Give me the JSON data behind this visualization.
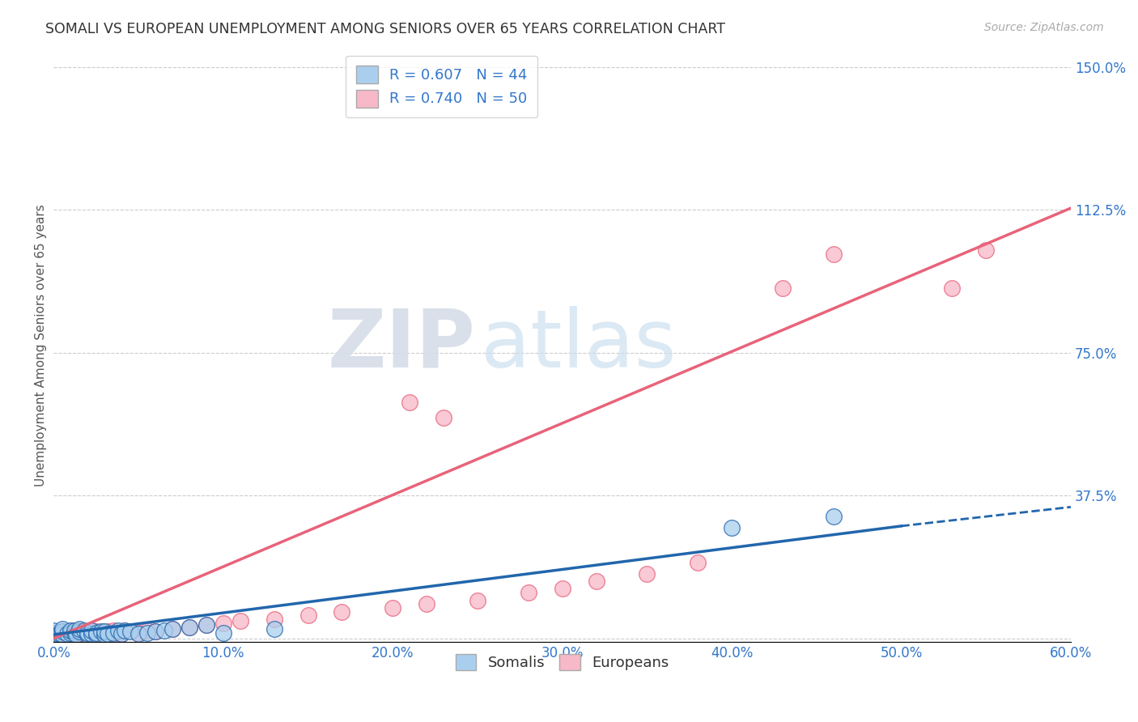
{
  "title": "SOMALI VS EUROPEAN UNEMPLOYMENT AMONG SENIORS OVER 65 YEARS CORRELATION CHART",
  "source": "Source: ZipAtlas.com",
  "xlabel_ticks": [
    "0.0%",
    "10.0%",
    "20.0%",
    "30.0%",
    "40.0%",
    "50.0%",
    "60.0%"
  ],
  "xlabel_vals": [
    0.0,
    0.1,
    0.2,
    0.3,
    0.4,
    0.5,
    0.6
  ],
  "ylabel_ticks_right": [
    "150.0%",
    "112.5%",
    "75.0%",
    "37.5%"
  ],
  "ylabel_vals_right": [
    1.5,
    1.125,
    0.75,
    0.375
  ],
  "ylabel_label": "Unemployment Among Seniors over 65 years",
  "xlim": [
    0.0,
    0.6
  ],
  "ylim": [
    -0.01,
    1.55
  ],
  "somali_R": 0.607,
  "somali_N": 44,
  "european_R": 0.74,
  "european_N": 50,
  "somali_color": "#aacfee",
  "european_color": "#f7b8c8",
  "somali_line_color": "#2166ac",
  "european_line_color": "#e8637a",
  "watermark_zip": "ZIP",
  "watermark_atlas": "atlas",
  "somali_points_x": [
    0.0,
    0.0,
    0.0,
    0.002,
    0.003,
    0.004,
    0.005,
    0.005,
    0.005,
    0.008,
    0.01,
    0.01,
    0.012,
    0.012,
    0.013,
    0.015,
    0.015,
    0.018,
    0.02,
    0.02,
    0.022,
    0.022,
    0.025,
    0.025,
    0.028,
    0.03,
    0.03,
    0.032,
    0.035,
    0.038,
    0.04,
    0.042,
    0.045,
    0.05,
    0.055,
    0.06,
    0.065,
    0.07,
    0.08,
    0.09,
    0.1,
    0.13,
    0.4,
    0.46
  ],
  "somali_points_y": [
    0.01,
    0.015,
    0.02,
    0.01,
    0.012,
    0.015,
    0.01,
    0.018,
    0.025,
    0.012,
    0.015,
    0.02,
    0.015,
    0.02,
    0.01,
    0.018,
    0.025,
    0.02,
    0.01,
    0.015,
    0.012,
    0.02,
    0.01,
    0.015,
    0.018,
    0.01,
    0.018,
    0.012,
    0.015,
    0.02,
    0.012,
    0.02,
    0.018,
    0.012,
    0.015,
    0.018,
    0.02,
    0.025,
    0.03,
    0.035,
    0.015,
    0.025,
    0.29,
    0.32
  ],
  "european_points_x": [
    0.0,
    0.0,
    0.002,
    0.003,
    0.005,
    0.005,
    0.008,
    0.01,
    0.01,
    0.012,
    0.013,
    0.015,
    0.015,
    0.018,
    0.02,
    0.022,
    0.025,
    0.025,
    0.028,
    0.03,
    0.032,
    0.035,
    0.038,
    0.04,
    0.042,
    0.05,
    0.055,
    0.06,
    0.07,
    0.08,
    0.09,
    0.1,
    0.11,
    0.13,
    0.15,
    0.17,
    0.2,
    0.22,
    0.25,
    0.28,
    0.3,
    0.32,
    0.35,
    0.38,
    0.21,
    0.23,
    0.43,
    0.46,
    0.53,
    0.55
  ],
  "european_points_y": [
    0.01,
    0.015,
    0.012,
    0.015,
    0.01,
    0.018,
    0.012,
    0.015,
    0.02,
    0.012,
    0.01,
    0.015,
    0.02,
    0.012,
    0.015,
    0.02,
    0.012,
    0.018,
    0.015,
    0.01,
    0.018,
    0.02,
    0.015,
    0.012,
    0.02,
    0.015,
    0.02,
    0.018,
    0.025,
    0.03,
    0.035,
    0.04,
    0.045,
    0.05,
    0.06,
    0.07,
    0.08,
    0.09,
    0.1,
    0.12,
    0.13,
    0.15,
    0.17,
    0.2,
    0.62,
    0.58,
    0.92,
    1.01,
    0.92,
    1.02
  ],
  "somali_line_x0": 0.0,
  "somali_line_y0": 0.01,
  "somali_line_x1": 0.5,
  "somali_line_y1": 0.295,
  "somali_line_xdash1": 0.5,
  "somali_line_ydash1": 0.295,
  "somali_line_xdash2": 0.6,
  "somali_line_ydash2": 0.345,
  "european_line_x0": 0.0,
  "european_line_y0": 0.0,
  "european_line_x1": 0.6,
  "european_line_y1": 1.13
}
